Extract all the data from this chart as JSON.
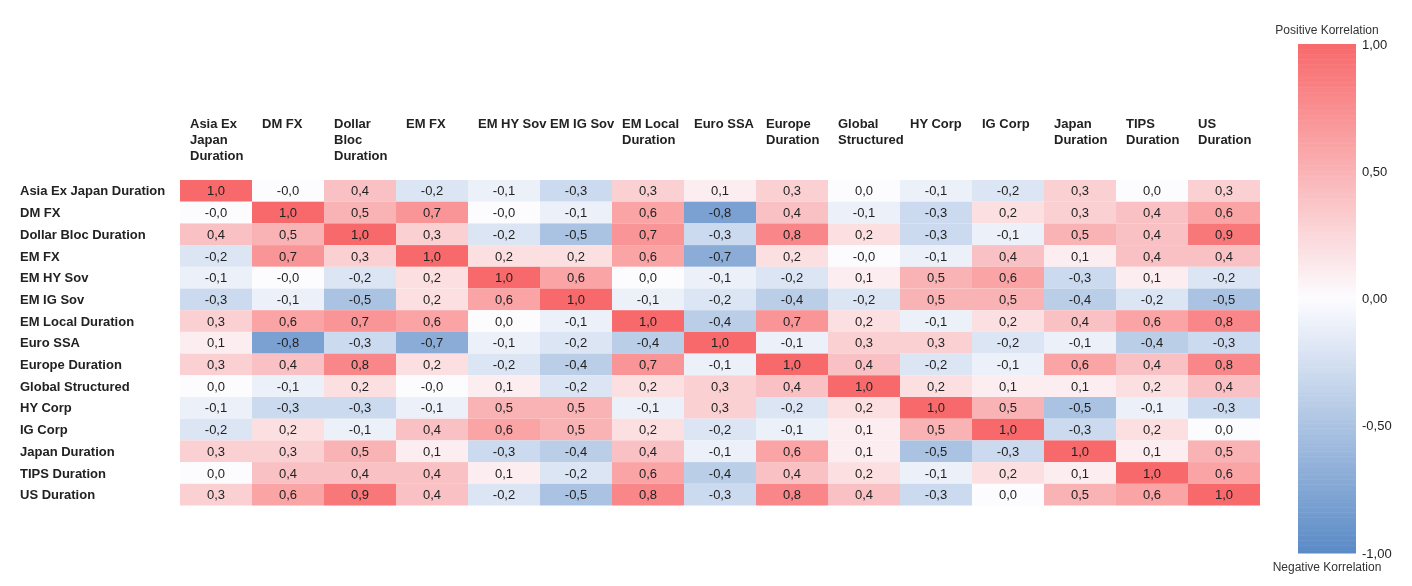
{
  "chart_data": {
    "type": "heatmap",
    "annotations": [
      "Positive Korrelation",
      "Negative Korrelation"
    ],
    "categories": [
      "Asia Ex Japan Duration",
      "DM FX",
      "Dollar Bloc Duration",
      "EM FX",
      "EM HY Sov",
      "EM IG Sov",
      "EM Local Duration",
      "Euro SSA",
      "Europe Duration",
      "Global Structured",
      "HY Corp",
      "IG Corp",
      "Japan Duration",
      "TIPS Duration",
      "US Duration"
    ],
    "y_categories": [
      "Asia Ex Japan Duration",
      "DM FX",
      "Dollar Bloc Duration",
      "EM FX",
      "EM HY Sov",
      "EM IG Sov",
      "EM Local Duration",
      "Euro SSA",
      "Europe Duration",
      "Global Structured",
      "HY Corp",
      "IG Corp",
      "Japan Duration",
      "TIPS Duration",
      "US Duration"
    ],
    "cells": [
      [
        1.0,
        -0.0,
        0.4,
        -0.2,
        -0.1,
        -0.3,
        0.3,
        0.1,
        0.3,
        0.0,
        -0.1,
        -0.2,
        0.3,
        0.0,
        0.3
      ],
      [
        -0.0,
        1.0,
        0.5,
        0.7,
        -0.0,
        -0.1,
        0.6,
        -0.8,
        0.4,
        -0.1,
        -0.3,
        0.2,
        0.3,
        0.4,
        0.6
      ],
      [
        0.4,
        0.5,
        1.0,
        0.3,
        -0.2,
        -0.5,
        0.7,
        -0.3,
        0.8,
        0.2,
        -0.3,
        -0.1,
        0.5,
        0.4,
        0.9
      ],
      [
        -0.2,
        0.7,
        0.3,
        1.0,
        0.2,
        0.2,
        0.6,
        -0.7,
        0.2,
        -0.0,
        -0.1,
        0.4,
        0.1,
        0.4,
        0.4
      ],
      [
        -0.1,
        -0.0,
        -0.2,
        0.2,
        1.0,
        0.6,
        0.0,
        -0.1,
        -0.2,
        0.1,
        0.5,
        0.6,
        -0.3,
        0.1,
        -0.2
      ],
      [
        -0.3,
        -0.1,
        -0.5,
        0.2,
        0.6,
        1.0,
        -0.1,
        -0.2,
        -0.4,
        -0.2,
        0.5,
        0.5,
        -0.4,
        -0.2,
        -0.5
      ],
      [
        0.3,
        0.6,
        0.7,
        0.6,
        0.0,
        -0.1,
        1.0,
        -0.4,
        0.7,
        0.2,
        -0.1,
        0.2,
        0.4,
        0.6,
        0.8
      ],
      [
        0.1,
        -0.8,
        -0.3,
        -0.7,
        -0.1,
        -0.2,
        -0.4,
        1.0,
        -0.1,
        0.3,
        0.3,
        -0.2,
        -0.1,
        -0.4,
        -0.3
      ],
      [
        0.3,
        0.4,
        0.8,
        0.2,
        -0.2,
        -0.4,
        0.7,
        -0.1,
        1.0,
        0.4,
        -0.2,
        -0.1,
        0.6,
        0.4,
        0.8
      ],
      [
        0.0,
        -0.1,
        0.2,
        -0.0,
        0.1,
        -0.2,
        0.2,
        0.3,
        0.4,
        1.0,
        0.2,
        0.1,
        0.1,
        0.2,
        0.4
      ],
      [
        -0.1,
        -0.3,
        -0.3,
        -0.1,
        0.5,
        0.5,
        -0.1,
        0.3,
        -0.2,
        0.2,
        1.0,
        0.5,
        -0.5,
        -0.1,
        -0.3
      ],
      [
        -0.2,
        0.2,
        -0.1,
        0.4,
        0.6,
        0.5,
        0.2,
        -0.2,
        -0.1,
        0.1,
        0.5,
        1.0,
        -0.3,
        0.2,
        0.0
      ],
      [
        0.3,
        0.3,
        0.5,
        0.1,
        -0.3,
        -0.4,
        0.4,
        -0.1,
        0.6,
        0.1,
        -0.5,
        -0.3,
        1.0,
        0.1,
        0.5
      ],
      [
        0.0,
        0.4,
        0.4,
        0.4,
        0.1,
        -0.2,
        0.6,
        -0.4,
        0.4,
        0.2,
        -0.1,
        0.2,
        0.1,
        1.0,
        0.6
      ],
      [
        0.3,
        0.6,
        0.9,
        0.4,
        -0.2,
        -0.5,
        0.8,
        -0.3,
        0.8,
        0.4,
        -0.3,
        0.0,
        0.5,
        0.6,
        1.0
      ]
    ],
    "cell_labels": [
      [
        "1,0",
        "-0,0",
        "0,4",
        "-0,2",
        "-0,1",
        "-0,3",
        "0,3",
        "0,1",
        "0,3",
        "0,0",
        "-0,1",
        "-0,2",
        "0,3",
        "0,0",
        "0,3"
      ],
      [
        "-0,0",
        "1,0",
        "0,5",
        "0,7",
        "-0,0",
        "-0,1",
        "0,6",
        "-0,8",
        "0,4",
        "-0,1",
        "-0,3",
        "0,2",
        "0,3",
        "0,4",
        "0,6"
      ],
      [
        "0,4",
        "0,5",
        "1,0",
        "0,3",
        "-0,2",
        "-0,5",
        "0,7",
        "-0,3",
        "0,8",
        "0,2",
        "-0,3",
        "-0,1",
        "0,5",
        "0,4",
        "0,9"
      ],
      [
        "-0,2",
        "0,7",
        "0,3",
        "1,0",
        "0,2",
        "0,2",
        "0,6",
        "-0,7",
        "0,2",
        "-0,0",
        "-0,1",
        "0,4",
        "0,1",
        "0,4",
        "0,4"
      ],
      [
        "-0,1",
        "-0,0",
        "-0,2",
        "0,2",
        "1,0",
        "0,6",
        "0,0",
        "-0,1",
        "-0,2",
        "0,1",
        "0,5",
        "0,6",
        "-0,3",
        "0,1",
        "-0,2"
      ],
      [
        "-0,3",
        "-0,1",
        "-0,5",
        "0,2",
        "0,6",
        "1,0",
        "-0,1",
        "-0,2",
        "-0,4",
        "-0,2",
        "0,5",
        "0,5",
        "-0,4",
        "-0,2",
        "-0,5"
      ],
      [
        "0,3",
        "0,6",
        "0,7",
        "0,6",
        "0,0",
        "-0,1",
        "1,0",
        "-0,4",
        "0,7",
        "0,2",
        "-0,1",
        "0,2",
        "0,4",
        "0,6",
        "0,8"
      ],
      [
        "0,1",
        "-0,8",
        "-0,3",
        "-0,7",
        "-0,1",
        "-0,2",
        "-0,4",
        "1,0",
        "-0,1",
        "0,3",
        "0,3",
        "-0,2",
        "-0,1",
        "-0,4",
        "-0,3"
      ],
      [
        "0,3",
        "0,4",
        "0,8",
        "0,2",
        "-0,2",
        "-0,4",
        "0,7",
        "-0,1",
        "1,0",
        "0,4",
        "-0,2",
        "-0,1",
        "0,6",
        "0,4",
        "0,8"
      ],
      [
        "0,0",
        "-0,1",
        "0,2",
        "-0,0",
        "0,1",
        "-0,2",
        "0,2",
        "0,3",
        "0,4",
        "1,0",
        "0,2",
        "0,1",
        "0,1",
        "0,2",
        "0,4"
      ],
      [
        "-0,1",
        "-0,3",
        "-0,3",
        "-0,1",
        "0,5",
        "0,5",
        "-0,1",
        "0,3",
        "-0,2",
        "0,2",
        "1,0",
        "0,5",
        "-0,5",
        "-0,1",
        "-0,3"
      ],
      [
        "-0,2",
        "0,2",
        "-0,1",
        "0,4",
        "0,6",
        "0,5",
        "0,2",
        "-0,2",
        "-0,1",
        "0,1",
        "0,5",
        "1,0",
        "-0,3",
        "0,2",
        "0,0"
      ],
      [
        "0,3",
        "0,3",
        "0,5",
        "0,1",
        "-0,3",
        "-0,4",
        "0,4",
        "-0,1",
        "0,6",
        "0,1",
        "-0,5",
        "-0,3",
        "1,0",
        "0,1",
        "0,5"
      ],
      [
        "0,0",
        "0,4",
        "0,4",
        "0,4",
        "0,1",
        "-0,2",
        "0,6",
        "-0,4",
        "0,4",
        "0,2",
        "-0,1",
        "0,2",
        "0,1",
        "1,0",
        "0,6"
      ],
      [
        "0,3",
        "0,6",
        "0,9",
        "0,4",
        "-0,2",
        "-0,5",
        "0,8",
        "-0,3",
        "0,8",
        "0,4",
        "-0,3",
        "0,0",
        "0,5",
        "0,6",
        "1,0"
      ]
    ],
    "clim": [
      -1,
      1
    ],
    "cticks": [
      {
        "value": 1,
        "label": "1,00"
      },
      {
        "value": 0.5,
        "label": "0,50"
      },
      {
        "value": 0,
        "label": "0,00"
      },
      {
        "value": -0.5,
        "label": "-0,50"
      },
      {
        "value": -1,
        "label": "-1,00"
      }
    ]
  }
}
